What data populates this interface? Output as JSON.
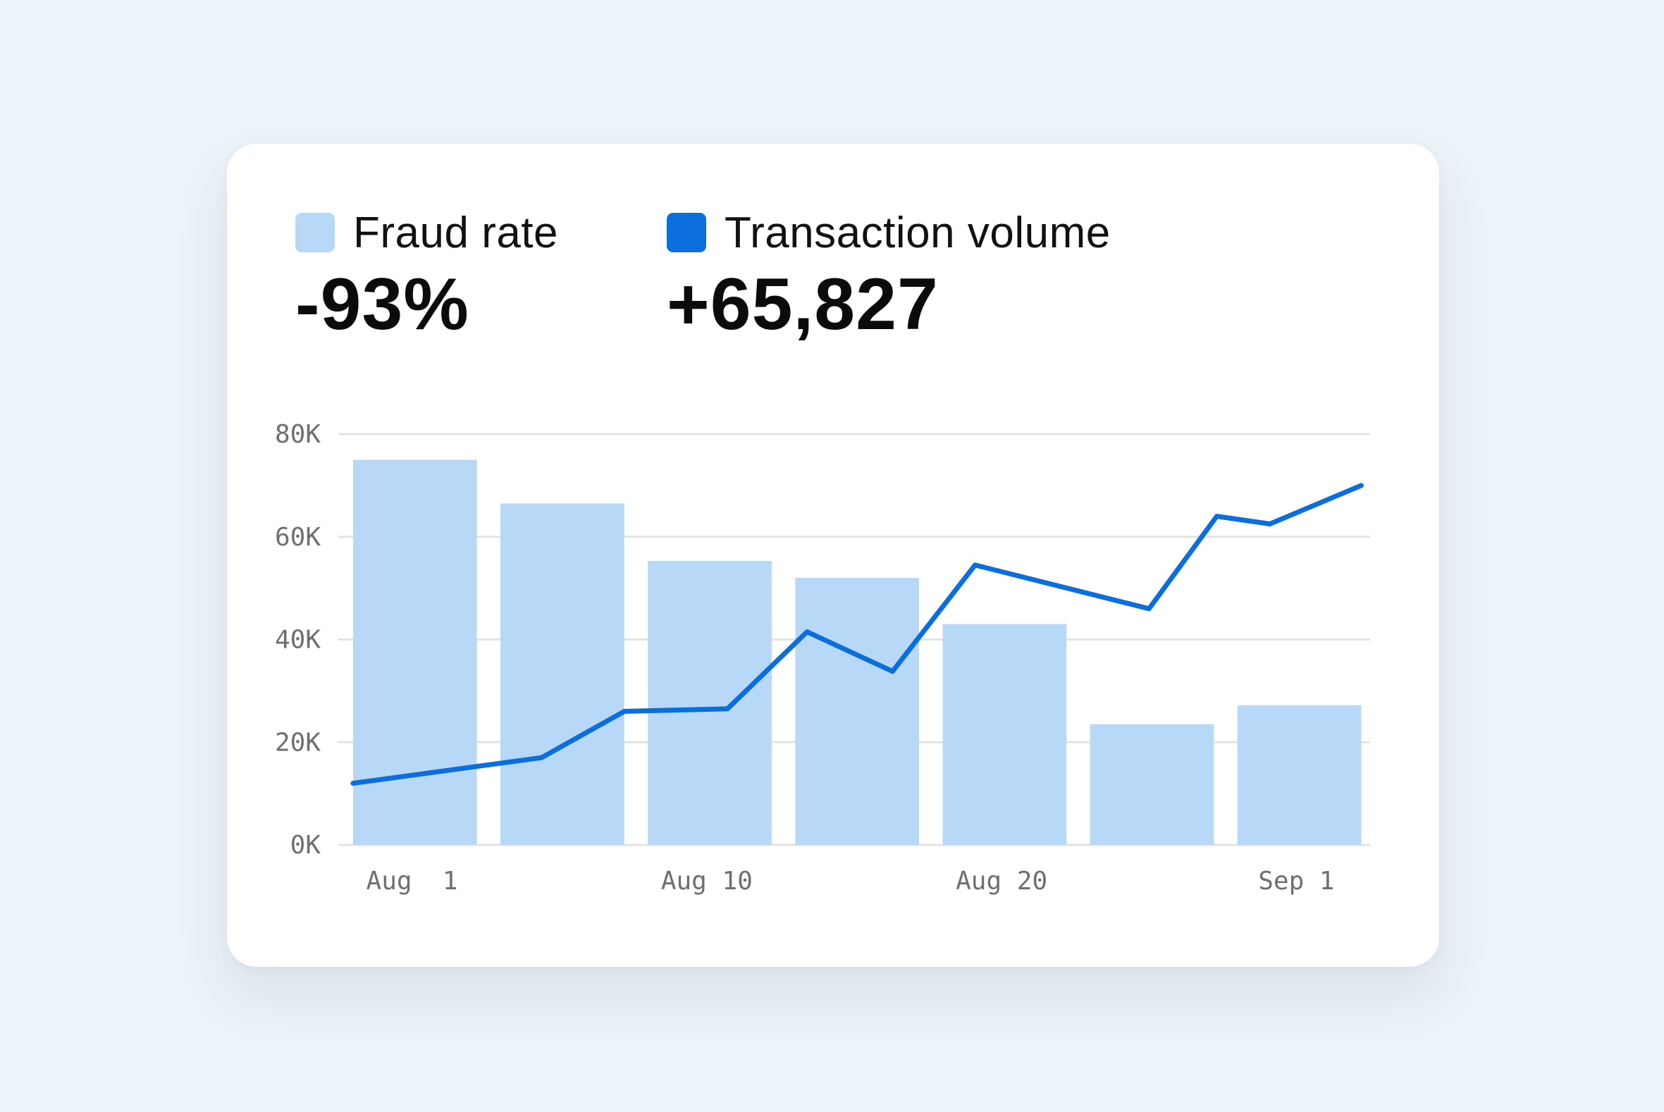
{
  "colors": {
    "background": "#ecf3f9",
    "card": "#ffffff",
    "fraud_rate": "#b8d8f8",
    "transaction_volume": "#0a6fdc",
    "gridline": "#e3e3e3",
    "axis_text": "#6f6f6f"
  },
  "metrics": {
    "fraud_rate": {
      "label": "Fraud rate",
      "value": "-93%"
    },
    "transaction_volume": {
      "label": "Transaction volume",
      "value": "+65,827"
    }
  },
  "chart_data": {
    "type": "bar",
    "legend_placement": "top-left",
    "grid": true,
    "ylim": [
      0,
      80000
    ],
    "y_ticks": [
      {
        "value": 80000,
        "label": "80K"
      },
      {
        "value": 60000,
        "label": "60K"
      },
      {
        "value": 40000,
        "label": "40K"
      },
      {
        "value": 20000,
        "label": "20K"
      },
      {
        "value": 0,
        "label": "0K"
      }
    ],
    "xlim": [
      0,
      35
    ],
    "x_ticks": [
      {
        "value": 2.5,
        "label": "Aug  1"
      },
      {
        "value": 12.5,
        "label": "Aug 10"
      },
      {
        "value": 22.5,
        "label": "Aug 20"
      },
      {
        "value": 32.5,
        "label": "Sep 1"
      }
    ],
    "series": [
      {
        "name": "Fraud rate",
        "kind": "bar",
        "bars": [
          {
            "x0": 0.5,
            "x1": 4.7,
            "value": 75000
          },
          {
            "x0": 5.5,
            "x1": 9.7,
            "value": 66500
          },
          {
            "x0": 10.5,
            "x1": 14.7,
            "value": 55300
          },
          {
            "x0": 15.5,
            "x1": 19.7,
            "value": 52000
          },
          {
            "x0": 20.5,
            "x1": 24.7,
            "value": 43000
          },
          {
            "x0": 25.5,
            "x1": 29.7,
            "value": 23500
          },
          {
            "x0": 30.5,
            "x1": 34.7,
            "value": 27200
          }
        ]
      },
      {
        "name": "Transaction volume",
        "kind": "line",
        "points": [
          {
            "x": 0.5,
            "y": 12000
          },
          {
            "x": 6.9,
            "y": 17000
          },
          {
            "x": 9.7,
            "y": 26000
          },
          {
            "x": 13.2,
            "y": 26500
          },
          {
            "x": 15.9,
            "y": 41500
          },
          {
            "x": 18.8,
            "y": 33800
          },
          {
            "x": 21.6,
            "y": 54500
          },
          {
            "x": 27.5,
            "y": 46000
          },
          {
            "x": 29.8,
            "y": 64000
          },
          {
            "x": 31.6,
            "y": 62500
          },
          {
            "x": 34.7,
            "y": 70000
          }
        ]
      }
    ]
  }
}
